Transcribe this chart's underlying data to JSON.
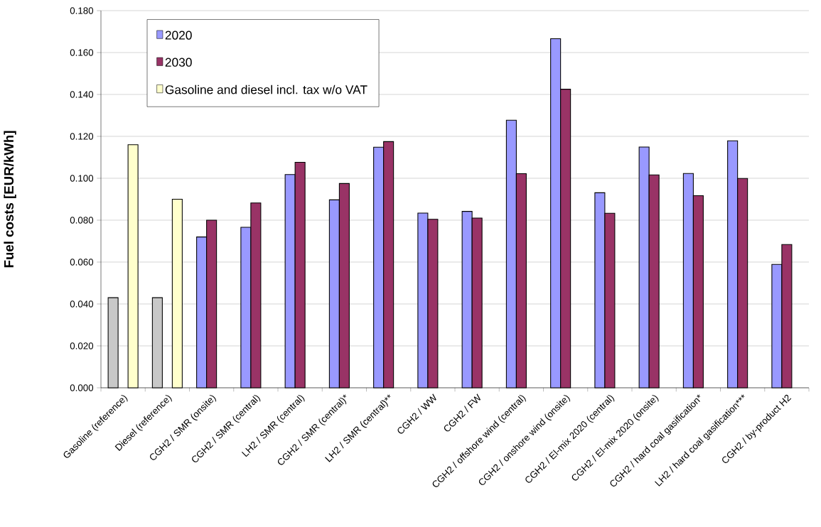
{
  "chart_data": {
    "type": "bar",
    "ylabel": "Fuel costs [EUR/kWh]",
    "categories": [
      "Gasoline (reference)",
      "Diesel (reference)",
      "CGH2 / SMR (onsite)",
      "CGH2 / SMR (central)",
      "LH2 / SMR (central)",
      "CGH2 / SMR (central)*",
      "LH2 / SMR (central)**",
      "CGH2 / WW",
      "CGH2 / FW",
      "CGH2 / offshore wind (central)",
      "CGH2 / onshore wind (onsite)",
      "CGH2 / El-mix 2020 (central)",
      "CGH2 / El-mix 2020 (onsite)",
      "CGH2 / hard coal gasification*",
      "LH2 / hard coal gasification***",
      "CGH2 / by-product H2"
    ],
    "series": [
      {
        "name": "2020",
        "color": "#9999ff",
        "colors": [
          "#c8c8c8",
          "#c8c8c8",
          "#9999ff",
          "#9999ff",
          "#9999ff",
          "#9999ff",
          "#9999ff",
          "#9999ff",
          "#9999ff",
          "#9999ff",
          "#9999ff",
          "#9999ff",
          "#9999ff",
          "#9999ff",
          "#9999ff",
          "#9999ff"
        ],
        "values": [
          0.043,
          0.043,
          0.072,
          0.0766,
          0.1018,
          0.0897,
          0.1148,
          0.0834,
          0.0842,
          0.1277,
          0.1666,
          0.0931,
          0.1149,
          0.1023,
          0.1179,
          0.0589
        ]
      },
      {
        "name": "2030",
        "color": "#993366",
        "values": [
          null,
          null,
          0.08,
          0.0882,
          0.1076,
          0.0975,
          0.1175,
          0.0804,
          0.081,
          0.1022,
          0.1425,
          0.0833,
          0.1016,
          0.0917,
          0.0999,
          0.0684
        ]
      },
      {
        "name": "Gasoline and diesel incl. tax w/o VAT",
        "color": "#ffffcc",
        "values": [
          0.116,
          0.09,
          null,
          null,
          null,
          null,
          null,
          null,
          null,
          null,
          null,
          null,
          null,
          null,
          null,
          null
        ]
      }
    ],
    "ylim": [
      0,
      0.18
    ],
    "yticks": [
      {
        "value": 0,
        "label": "0.000"
      },
      {
        "value": 0.02,
        "label": "0.020"
      },
      {
        "value": 0.04,
        "label": "0.040"
      },
      {
        "value": 0.06,
        "label": "0.060"
      },
      {
        "value": 0.08,
        "label": "0.080"
      },
      {
        "value": 0.1,
        "label": "0.100"
      },
      {
        "value": 0.12,
        "label": "0.120"
      },
      {
        "value": 0.14,
        "label": "0.140"
      },
      {
        "value": 0.16,
        "label": "0.160"
      },
      {
        "value": 0.18,
        "label": "0.180"
      }
    ],
    "grid": "y",
    "legend": "top left"
  }
}
